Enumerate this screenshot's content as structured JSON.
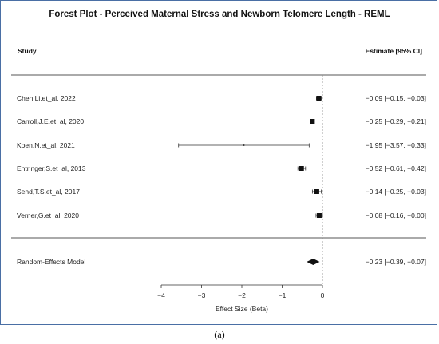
{
  "chart_data": {
    "type": "forest",
    "title": "Forest Plot - Perceived Maternal Stress and Newborn Telomere Length - REML",
    "column_headers": {
      "study": "Study",
      "estimate": "Estimate [95% CI]"
    },
    "xlabel": "Effect Size (Beta)",
    "xlim": [
      -4,
      0
    ],
    "xticks": [
      -4,
      -3,
      -2,
      -1,
      0
    ],
    "xtick_labels": [
      "−4",
      "−3",
      "−2",
      "−1",
      "0"
    ],
    "reference_line": 0,
    "studies": [
      {
        "name": "Chen,Li.et_al, 2022",
        "estimate": -0.09,
        "lower": -0.15,
        "upper": -0.03,
        "label": "−0.09 [−0.15, −0.03]"
      },
      {
        "name": "Carroll,J.E.et_al, 2020",
        "estimate": -0.25,
        "lower": -0.29,
        "upper": -0.21,
        "label": "−0.25 [−0.29, −0.21]"
      },
      {
        "name": "Koen,N.et_al, 2021",
        "estimate": -1.95,
        "lower": -3.57,
        "upper": -0.33,
        "label": "−1.95 [−3.57, −0.33]"
      },
      {
        "name": "Entringer,S.et_al, 2013",
        "estimate": -0.52,
        "lower": -0.61,
        "upper": -0.42,
        "label": "−0.52 [−0.61, −0.42]"
      },
      {
        "name": "Send,T.S.et_al, 2017",
        "estimate": -0.14,
        "lower": -0.25,
        "upper": -0.03,
        "label": "−0.14 [−0.25, −0.03]"
      },
      {
        "name": "Verner,G.et_al, 2020",
        "estimate": -0.08,
        "lower": -0.16,
        "upper": -0.0,
        "label": "−0.08 [−0.16, −0.00]"
      }
    ],
    "summary": {
      "name": "Random-Effects Model",
      "estimate": -0.23,
      "lower": -0.39,
      "upper": -0.07,
      "label": "−0.23 [−0.39, −0.07]"
    }
  },
  "caption": "(a)"
}
